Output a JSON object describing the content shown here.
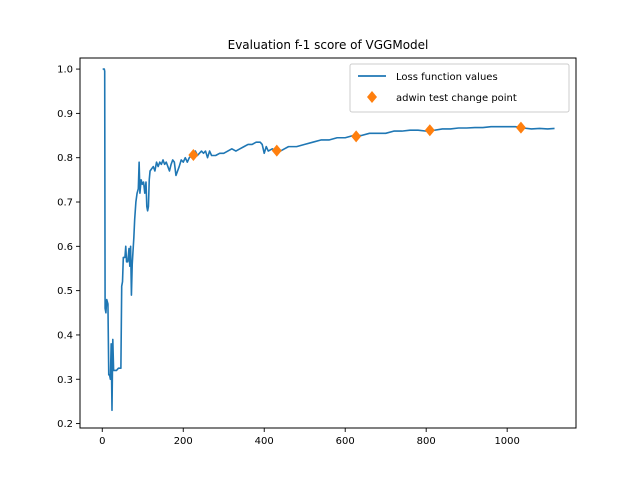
{
  "chart_data": {
    "type": "line",
    "title": "Evaluation f-1 score of VGGModel",
    "xlabel": "",
    "ylabel": "",
    "xlim": [
      -55,
      1170
    ],
    "ylim": [
      0.19,
      1.025
    ],
    "xticks": [
      0,
      200,
      400,
      600,
      800,
      1000
    ],
    "yticks": [
      0.2,
      0.3,
      0.4,
      0.5,
      0.6,
      0.7,
      0.8,
      0.9,
      1.0
    ],
    "legend_position": "top-right",
    "grid": false,
    "series": [
      {
        "name": "Loss function values",
        "type": "line",
        "color": "#1f77b4",
        "points": [
          [
            1,
            1.0
          ],
          [
            5,
            1.0
          ],
          [
            6,
            0.995
          ],
          [
            7,
            0.46
          ],
          [
            9,
            0.45
          ],
          [
            11,
            0.48
          ],
          [
            14,
            0.47
          ],
          [
            16,
            0.31
          ],
          [
            18,
            0.31
          ],
          [
            20,
            0.3
          ],
          [
            22,
            0.38
          ],
          [
            24,
            0.23
          ],
          [
            26,
            0.39
          ],
          [
            28,
            0.32
          ],
          [
            30,
            0.32
          ],
          [
            35,
            0.32
          ],
          [
            40,
            0.325
          ],
          [
            46,
            0.325
          ],
          [
            48,
            0.51
          ],
          [
            50,
            0.52
          ],
          [
            52,
            0.575
          ],
          [
            56,
            0.575
          ],
          [
            58,
            0.6
          ],
          [
            60,
            0.565
          ],
          [
            63,
            0.565
          ],
          [
            66,
            0.595
          ],
          [
            68,
            0.555
          ],
          [
            70,
            0.6
          ],
          [
            72,
            0.49
          ],
          [
            74,
            0.56
          ],
          [
            76,
            0.59
          ],
          [
            78,
            0.62
          ],
          [
            80,
            0.66
          ],
          [
            83,
            0.7
          ],
          [
            86,
            0.72
          ],
          [
            89,
            0.73
          ],
          [
            91,
            0.79
          ],
          [
            93,
            0.72
          ],
          [
            96,
            0.75
          ],
          [
            99,
            0.74
          ],
          [
            102,
            0.745
          ],
          [
            105,
            0.72
          ],
          [
            108,
            0.745
          ],
          [
            110,
            0.69
          ],
          [
            112,
            0.68
          ],
          [
            114,
            0.69
          ],
          [
            116,
            0.75
          ],
          [
            118,
            0.77
          ],
          [
            122,
            0.775
          ],
          [
            126,
            0.78
          ],
          [
            130,
            0.77
          ],
          [
            134,
            0.79
          ],
          [
            138,
            0.78
          ],
          [
            142,
            0.79
          ],
          [
            146,
            0.785
          ],
          [
            150,
            0.795
          ],
          [
            154,
            0.785
          ],
          [
            158,
            0.79
          ],
          [
            162,
            0.78
          ],
          [
            166,
            0.77
          ],
          [
            170,
            0.785
          ],
          [
            174,
            0.795
          ],
          [
            178,
            0.79
          ],
          [
            182,
            0.76
          ],
          [
            186,
            0.77
          ],
          [
            190,
            0.78
          ],
          [
            195,
            0.795
          ],
          [
            200,
            0.79
          ],
          [
            205,
            0.8
          ],
          [
            210,
            0.79
          ],
          [
            215,
            0.8
          ],
          [
            220,
            0.805
          ],
          [
            225,
            0.8
          ],
          [
            230,
            0.815
          ],
          [
            235,
            0.805
          ],
          [
            240,
            0.81
          ],
          [
            245,
            0.815
          ],
          [
            250,
            0.81
          ],
          [
            255,
            0.815
          ],
          [
            260,
            0.8
          ],
          [
            265,
            0.815
          ],
          [
            270,
            0.805
          ],
          [
            280,
            0.805
          ],
          [
            290,
            0.81
          ],
          [
            300,
            0.81
          ],
          [
            310,
            0.815
          ],
          [
            320,
            0.82
          ],
          [
            330,
            0.815
          ],
          [
            340,
            0.82
          ],
          [
            350,
            0.825
          ],
          [
            360,
            0.83
          ],
          [
            370,
            0.83
          ],
          [
            380,
            0.835
          ],
          [
            390,
            0.835
          ],
          [
            395,
            0.83
          ],
          [
            400,
            0.81
          ],
          [
            405,
            0.825
          ],
          [
            410,
            0.815
          ],
          [
            420,
            0.82
          ],
          [
            430,
            0.815
          ],
          [
            440,
            0.815
          ],
          [
            450,
            0.82
          ],
          [
            460,
            0.825
          ],
          [
            480,
            0.825
          ],
          [
            500,
            0.83
          ],
          [
            520,
            0.835
          ],
          [
            540,
            0.84
          ],
          [
            560,
            0.84
          ],
          [
            580,
            0.845
          ],
          [
            600,
            0.845
          ],
          [
            620,
            0.85
          ],
          [
            640,
            0.85
          ],
          [
            660,
            0.855
          ],
          [
            680,
            0.855
          ],
          [
            700,
            0.855
          ],
          [
            720,
            0.86
          ],
          [
            740,
            0.86
          ],
          [
            760,
            0.862
          ],
          [
            780,
            0.862
          ],
          [
            800,
            0.86
          ],
          [
            820,
            0.862
          ],
          [
            840,
            0.865
          ],
          [
            860,
            0.865
          ],
          [
            880,
            0.867
          ],
          [
            900,
            0.867
          ],
          [
            920,
            0.868
          ],
          [
            940,
            0.868
          ],
          [
            960,
            0.87
          ],
          [
            980,
            0.87
          ],
          [
            1000,
            0.87
          ],
          [
            1020,
            0.87
          ],
          [
            1040,
            0.867
          ],
          [
            1060,
            0.865
          ],
          [
            1080,
            0.866
          ],
          [
            1100,
            0.865
          ],
          [
            1117,
            0.866
          ]
        ]
      },
      {
        "name": "adwin test change point",
        "type": "scatter",
        "marker": "diamond",
        "color": "#ff7f0e",
        "points": [
          [
            225,
            0.806
          ],
          [
            431,
            0.816
          ],
          [
            627,
            0.848
          ],
          [
            809,
            0.862
          ],
          [
            1034,
            0.868
          ]
        ]
      }
    ]
  }
}
